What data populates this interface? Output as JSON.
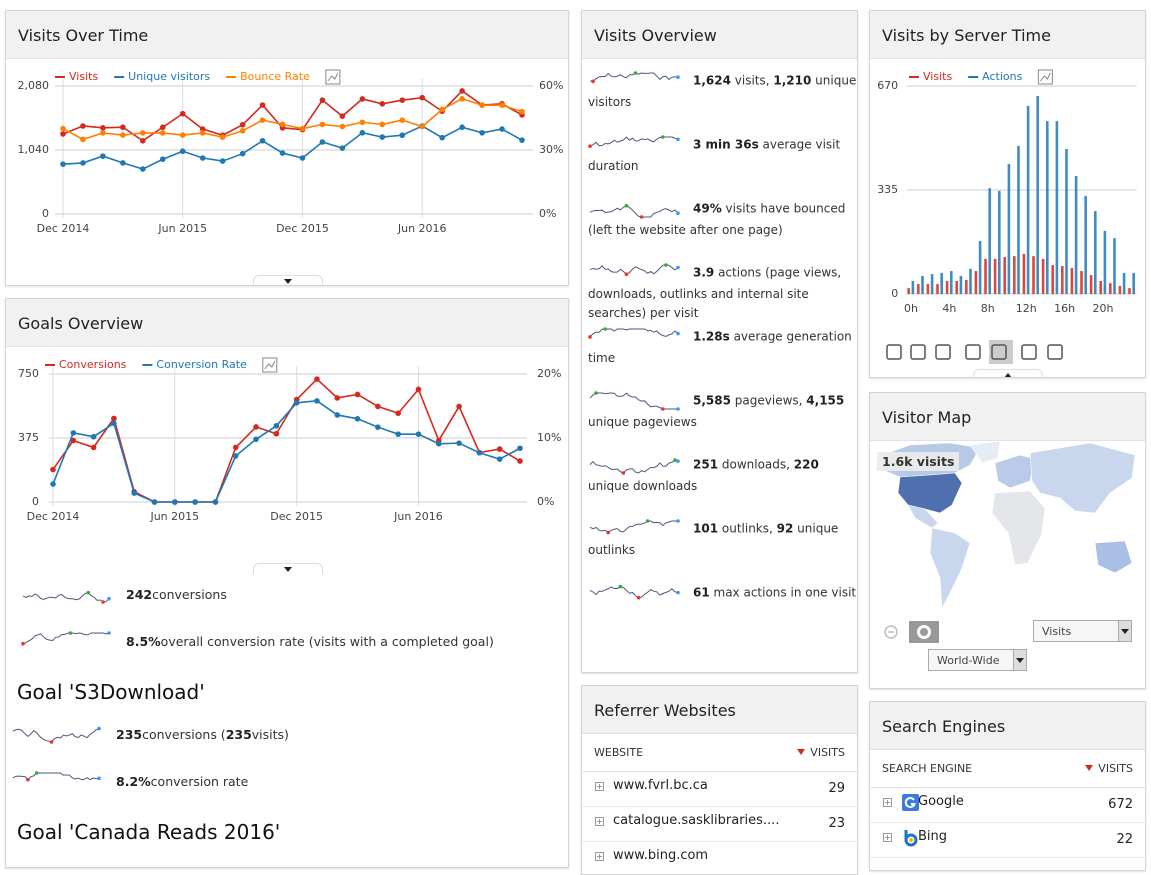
{
  "visits_over_time": {
    "title": "Visits Over Time",
    "chart": {
      "type": "line",
      "categories": [
        "Dec 2014",
        null,
        null,
        null,
        null,
        null,
        "Jun 2015",
        null,
        null,
        null,
        null,
        null,
        "Dec 2015",
        null,
        null,
        null,
        null,
        null,
        "Jun 2016",
        null,
        null,
        null,
        null,
        null
      ],
      "series": [
        {
          "name": "Visits",
          "color": "#d4291f",
          "values": [
            1300,
            1430,
            1400,
            1410,
            1190,
            1410,
            1630,
            1380,
            1280,
            1450,
            1770,
            1400,
            1370,
            1850,
            1590,
            1870,
            1790,
            1850,
            1890,
            1670,
            2000,
            1770,
            1790,
            1610
          ]
        },
        {
          "name": "Unique visitors",
          "color": "#1f78b4",
          "values": [
            810,
            830,
            940,
            830,
            730,
            890,
            1020,
            910,
            860,
            980,
            1190,
            990,
            910,
            1170,
            1070,
            1320,
            1250,
            1280,
            1430,
            1240,
            1410,
            1320,
            1380,
            1200
          ]
        },
        {
          "name": "Bounce Rate",
          "color": "#ff7f00",
          "axis": "y2",
          "values": [
            40,
            35,
            38,
            37,
            38,
            38,
            37,
            38,
            36,
            39,
            44,
            42,
            40,
            42,
            41,
            43,
            42,
            44,
            41,
            49,
            54,
            51,
            51,
            48
          ]
        }
      ],
      "ylim": [
        0,
        2080
      ],
      "yticks": [
        0,
        {
          "value": 1040,
          "label": "1,040"
        },
        {
          "value": 2080,
          "label": "2,080"
        }
      ],
      "y2lim": [
        0,
        60
      ],
      "y2ticks": [
        {
          "value": 0,
          "label": "0%"
        },
        {
          "value": 30,
          "label": "30%"
        },
        {
          "value": 60,
          "label": "60%"
        }
      ],
      "grid": true
    }
  },
  "goals_overview": {
    "title": "Goals Overview",
    "chart": {
      "type": "line",
      "categories": [
        "Dec 2014",
        null,
        null,
        null,
        null,
        null,
        "Jun 2015",
        null,
        null,
        null,
        null,
        null,
        "Dec 2015",
        null,
        null,
        null,
        null,
        null,
        "Jun 2016",
        null,
        null,
        null,
        null,
        null
      ],
      "series": [
        {
          "name": "Conversions",
          "color": "#d4291f",
          "values": [
            190,
            360,
            320,
            490,
            60,
            0,
            0,
            0,
            0,
            320,
            440,
            400,
            600,
            720,
            610,
            630,
            560,
            520,
            660,
            360,
            560,
            290,
            310,
            240
          ]
        },
        {
          "name": "Conversion Rate",
          "color": "#1f78b4",
          "axis": "y2",
          "values": [
            2.8,
            10.8,
            10.2,
            12.3,
            1.4,
            0,
            0,
            0,
            0,
            7.2,
            9.8,
            11.9,
            15.5,
            15.8,
            13.6,
            13,
            11.7,
            10.6,
            10.6,
            9.1,
            9.2,
            7.7,
            6.7,
            8.4
          ]
        }
      ],
      "ylim": [
        0,
        750
      ],
      "yticks": [
        0,
        375,
        750
      ],
      "y2lim": [
        0,
        20
      ],
      "y2ticks": [
        {
          "value": 0,
          "label": "0%"
        },
        {
          "value": 10,
          "label": "10%"
        },
        {
          "value": 20,
          "label": "20%"
        }
      ],
      "grid": true
    },
    "summary": [
      [
        "242",
        " conversions"
      ],
      [
        "8.5%",
        " overall conversion rate (visits with a completed goal)"
      ]
    ],
    "goals": [
      {
        "name": "Goal 'S3Download'",
        "summary": [
          [
            "235",
            " conversions (",
            "235",
            " visits)"
          ],
          [
            "8.2%",
            " conversion rate"
          ]
        ]
      },
      {
        "name": "Goal 'Canada Reads 2016'"
      }
    ]
  },
  "visits_overview": {
    "title": "Visits Overview",
    "items": [
      [
        "1,624",
        " visits, ",
        "1,210",
        " unique visitors"
      ],
      [
        "3 min 36s",
        " average visit duration"
      ],
      [
        "49%",
        " visits have bounced (left the website after one page)"
      ],
      [
        "3.9",
        " actions (page views, downloads, outlinks and internal site searches) per visit"
      ],
      [
        "1.28s",
        " average generation time"
      ],
      [
        "5,585",
        " pageviews, ",
        "4,155",
        " unique pageviews"
      ],
      [
        "251",
        " downloads, ",
        "220",
        " unique downloads"
      ],
      [
        "101",
        " outlinks, ",
        "92",
        " unique outlinks"
      ],
      [
        "61",
        " max actions in one visit"
      ]
    ]
  },
  "referrer_websites": {
    "title": "Referrer Websites",
    "columns": [
      "WEBSITE",
      "VISITS"
    ],
    "rows": [
      [
        "www.fvrl.bc.ca",
        29
      ],
      [
        "catalogue.sasklibraries....",
        23
      ],
      [
        "www.bing.com"
      ]
    ]
  },
  "visits_by_server_time": {
    "title": "Visits by Server Time",
    "chart": {
      "type": "bar",
      "categories": [
        "0h",
        null,
        null,
        null,
        "4h",
        null,
        null,
        null,
        "8h",
        null,
        null,
        null,
        "12h",
        null,
        null,
        null,
        "16h",
        null,
        null,
        null,
        "20h",
        null,
        null,
        null
      ],
      "series": [
        {
          "name": "Visits",
          "color": "#d4291f",
          "values": [
            19,
            32,
            32,
            32,
            42,
            42,
            45,
            74,
            113,
            113,
            119,
            122,
            129,
            122,
            113,
            93,
            90,
            84,
            74,
            61,
            42,
            35,
            26,
            19
          ]
        },
        {
          "name": "Actions",
          "color": "#1f78b4",
          "values": [
            42,
            58,
            64,
            68,
            74,
            58,
            81,
            171,
            341,
            332,
            419,
            477,
            606,
            638,
            557,
            557,
            467,
            380,
            316,
            267,
            203,
            180,
            68,
            68
          ]
        }
      ],
      "ylim": [
        0,
        670
      ],
      "yticks": [
        0,
        335,
        670
      ],
      "grid": true
    }
  },
  "visitor_map": {
    "title": "Visitor Map",
    "tooltip": "1.6k visits",
    "metric": "Visits",
    "region": "World-Wide"
  },
  "search_engines": {
    "title": "Search Engines",
    "columns": [
      "SEARCH ENGINE",
      "VISITS"
    ],
    "rows": [
      [
        "Google",
        672
      ],
      [
        "Bing",
        22
      ]
    ]
  }
}
